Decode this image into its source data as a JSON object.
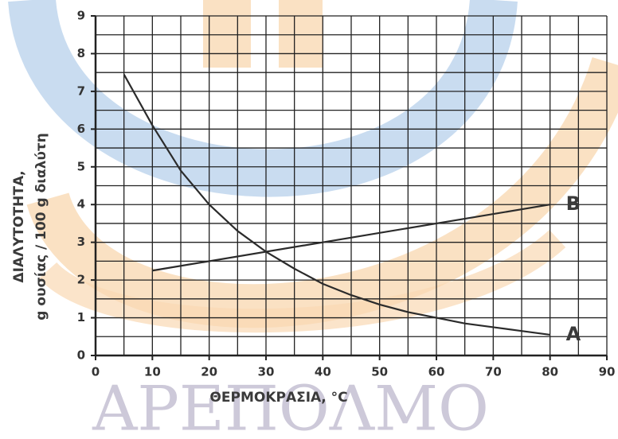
{
  "chart_data": {
    "type": "line",
    "xlabel": "ΘΕΡΜΟΚΡΑΣΙΑ, °C",
    "ylabel": [
      "ΔΙΑΛΥΤΟΤΗΤΑ,",
      "g ουσίας / 100 g διαλύτη"
    ],
    "watermark": "ΑΡΕΠΟΛΜΟ",
    "xlim": [
      0,
      90
    ],
    "ylim": [
      0,
      9
    ],
    "xticks": [
      0,
      10,
      20,
      30,
      40,
      50,
      60,
      70,
      80,
      90
    ],
    "yticks": [
      0,
      1,
      2,
      3,
      4,
      5,
      6,
      7,
      8,
      9
    ],
    "minor_xticks": [
      5,
      15,
      25,
      35,
      45,
      55,
      65,
      75,
      85
    ],
    "minor_yticks": [
      0.5,
      1.5,
      2.5,
      3.5,
      4.5,
      5.5,
      6.5,
      7.5,
      8.5
    ],
    "grid": true,
    "series": [
      {
        "name": "A",
        "color": "#2b2b2b",
        "x": [
          5,
          10,
          15,
          20,
          25,
          30,
          35,
          40,
          45,
          50,
          55,
          60,
          65,
          70,
          75,
          80
        ],
        "values": [
          7.45,
          6.1,
          4.9,
          4.0,
          3.3,
          2.75,
          2.3,
          1.9,
          1.6,
          1.35,
          1.15,
          1.0,
          0.85,
          0.75,
          0.65,
          0.55
        ]
      },
      {
        "name": "B",
        "color": "#2b2b2b",
        "x": [
          10,
          80
        ],
        "values": [
          2.25,
          4.0
        ]
      }
    ]
  }
}
